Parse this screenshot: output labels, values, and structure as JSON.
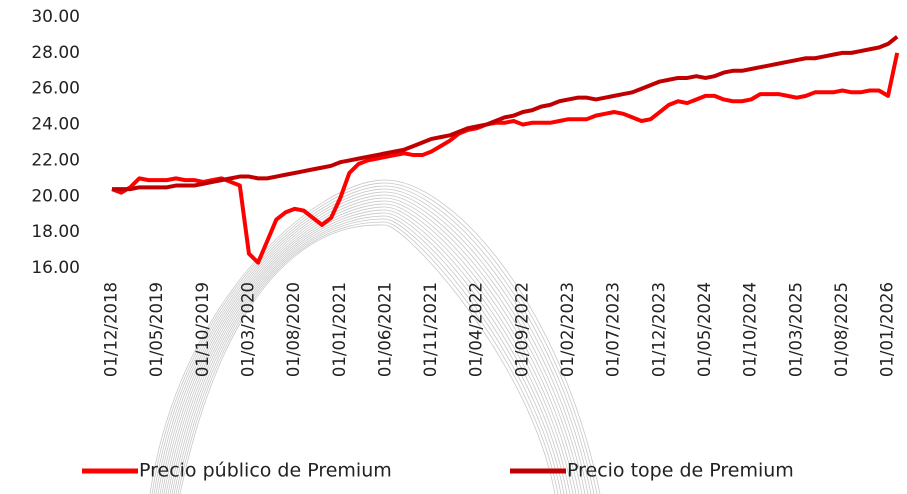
{
  "chart_data": {
    "type": "line",
    "categories": [
      "01/12/2018",
      null,
      null,
      null,
      null,
      "01/05/2019",
      null,
      null,
      null,
      null,
      "01/10/2019",
      null,
      null,
      null,
      null,
      "01/03/2020",
      null,
      null,
      null,
      null,
      "01/08/2020",
      null,
      null,
      null,
      null,
      "01/01/2021",
      null,
      null,
      null,
      null,
      "01/06/2021",
      null,
      null,
      null,
      null,
      "01/11/2021",
      null,
      null,
      null,
      null,
      "01/04/2022",
      null,
      null,
      null,
      null,
      "01/09/2022",
      null,
      null,
      null,
      null,
      "01/02/2023",
      null,
      null,
      null,
      null,
      "01/07/2023",
      null,
      null,
      null,
      null,
      "01/12/2023",
      null,
      null,
      null,
      null,
      "01/05/2024",
      null,
      null,
      null,
      null,
      "01/10/2024",
      null,
      null,
      null,
      null,
      "01/03/2025",
      null,
      null,
      null,
      null,
      "01/08/2025",
      null,
      null,
      null,
      null,
      "01/01/2026",
      null
    ],
    "series": [
      {
        "name": "Precio público de Premium",
        "color": "#ff0000",
        "values": [
          20.4,
          20.2,
          20.5,
          21.0,
          20.9,
          20.9,
          20.9,
          21.0,
          20.9,
          20.9,
          20.8,
          20.9,
          21.0,
          20.8,
          20.6,
          16.8,
          16.3,
          17.5,
          18.7,
          19.1,
          19.3,
          19.2,
          18.8,
          18.4,
          18.8,
          19.9,
          21.3,
          21.8,
          22.0,
          22.1,
          22.2,
          22.3,
          22.4,
          22.3,
          22.3,
          22.5,
          22.8,
          23.1,
          23.5,
          23.7,
          23.8,
          24.0,
          24.1,
          24.1,
          24.2,
          24.0,
          24.1,
          24.1,
          24.1,
          24.2,
          24.3,
          24.3,
          24.3,
          24.5,
          24.6,
          24.7,
          24.6,
          24.4,
          24.2,
          24.3,
          24.7,
          25.1,
          25.3,
          25.2,
          25.4,
          25.6,
          25.6,
          25.4,
          25.3,
          25.3,
          25.4,
          25.7,
          25.7,
          25.7,
          25.6,
          25.5,
          25.6,
          25.8,
          25.8,
          25.8,
          25.9,
          25.8,
          25.8,
          25.9,
          25.9,
          25.6,
          28.0
        ]
      },
      {
        "name": "Precio tope de Premium",
        "color": "#c00000",
        "values": [
          20.4,
          20.4,
          20.4,
          20.5,
          20.5,
          20.5,
          20.5,
          20.6,
          20.6,
          20.6,
          20.7,
          20.8,
          20.9,
          21.0,
          21.1,
          21.1,
          21.0,
          21.0,
          21.1,
          21.2,
          21.3,
          21.4,
          21.5,
          21.6,
          21.7,
          21.9,
          22.0,
          22.1,
          22.2,
          22.3,
          22.4,
          22.5,
          22.6,
          22.8,
          23.0,
          23.2,
          23.3,
          23.4,
          23.6,
          23.8,
          23.9,
          24.0,
          24.2,
          24.4,
          24.5,
          24.7,
          24.8,
          25.0,
          25.1,
          25.3,
          25.4,
          25.5,
          25.5,
          25.4,
          25.5,
          25.6,
          25.7,
          25.8,
          26.0,
          26.2,
          26.4,
          26.5,
          26.6,
          26.6,
          26.7,
          26.6,
          26.7,
          26.9,
          27.0,
          27.0,
          27.1,
          27.2,
          27.3,
          27.4,
          27.5,
          27.6,
          27.7,
          27.7,
          27.8,
          27.9,
          28.0,
          28.0,
          28.1,
          28.2,
          28.3,
          28.5,
          28.9
        ]
      }
    ],
    "ylim": [
      16,
      30
    ],
    "yticks": [
      {
        "value": 16,
        "label": "16.00"
      },
      {
        "value": 18,
        "label": "18.00"
      },
      {
        "value": 20,
        "label": "20.00"
      },
      {
        "value": 22,
        "label": "22.00"
      },
      {
        "value": 24,
        "label": "24.00"
      },
      {
        "value": 26,
        "label": "26.00"
      },
      {
        "value": 28,
        "label": "28.00"
      },
      {
        "value": 30,
        "label": "30.00"
      }
    ],
    "grid": false,
    "legend": "bottom"
  }
}
